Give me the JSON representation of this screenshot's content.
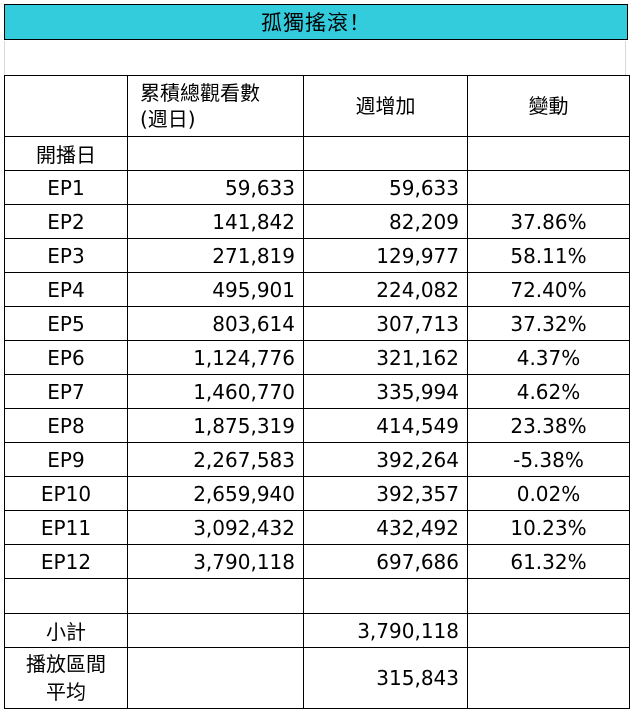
{
  "sheet": {
    "title": "孤獨搖滾！",
    "headers": {
      "episode": "",
      "cumulative": "累積總觀看數(週日)",
      "cumulative_line1": "累積總觀看數",
      "cumulative_line2": "(週日)",
      "weekly": "週增加",
      "change": "變動"
    },
    "launch_label": "開播日",
    "rows": [
      {
        "ep": "EP1",
        "cumulative": "59,633",
        "weekly": "59,633",
        "change": ""
      },
      {
        "ep": "EP2",
        "cumulative": "141,842",
        "weekly": "82,209",
        "change": "37.86%"
      },
      {
        "ep": "EP3",
        "cumulative": "271,819",
        "weekly": "129,977",
        "change": "58.11%"
      },
      {
        "ep": "EP4",
        "cumulative": "495,901",
        "weekly": "224,082",
        "change": "72.40%"
      },
      {
        "ep": "EP5",
        "cumulative": "803,614",
        "weekly": "307,713",
        "change": "37.32%"
      },
      {
        "ep": "EP6",
        "cumulative": "1,124,776",
        "weekly": "321,162",
        "change": "4.37%"
      },
      {
        "ep": "EP7",
        "cumulative": "1,460,770",
        "weekly": "335,994",
        "change": "4.62%"
      },
      {
        "ep": "EP8",
        "cumulative": "1,875,319",
        "weekly": "414,549",
        "change": "23.38%"
      },
      {
        "ep": "EP9",
        "cumulative": "2,267,583",
        "weekly": "392,264",
        "change": "-5.38%"
      },
      {
        "ep": "EP10",
        "cumulative": "2,659,940",
        "weekly": "392,357",
        "change": "0.02%"
      },
      {
        "ep": "EP11",
        "cumulative": "3,092,432",
        "weekly": "432,492",
        "change": "10.23%"
      },
      {
        "ep": "EP12",
        "cumulative": "3,790,118",
        "weekly": "697,686",
        "change": "61.32%"
      }
    ],
    "subtotal": {
      "label": "小計",
      "value": "3,790,118"
    },
    "average": {
      "label_line1": "播放區間",
      "label_line2": "平均",
      "value": "315,843"
    }
  },
  "colors": {
    "title_band": "#33ccdd",
    "grid": "#000000",
    "text": "#000000"
  }
}
